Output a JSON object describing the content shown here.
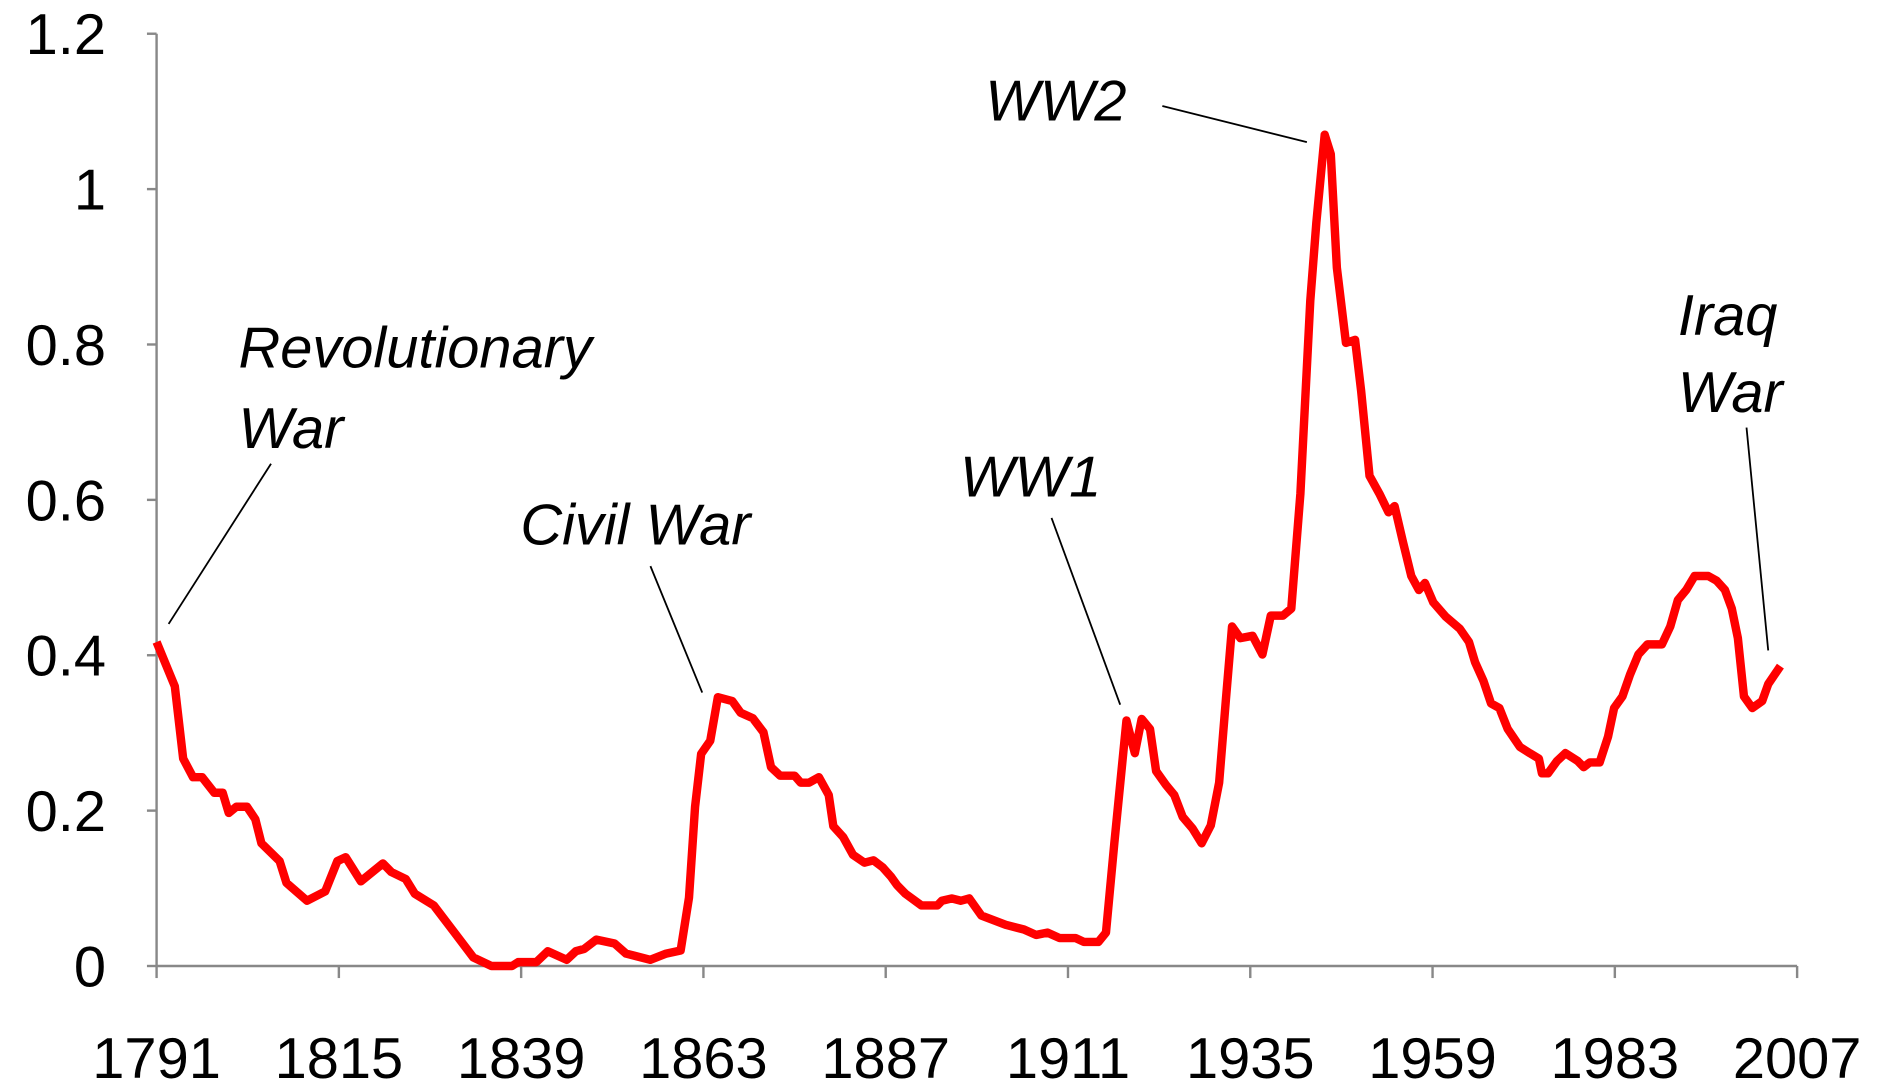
{
  "chart_data": {
    "type": "line",
    "xlim": [
      1791,
      2007
    ],
    "xticks": [
      1791,
      1815,
      1839,
      1863,
      1887,
      1911,
      1935,
      1959,
      1983,
      2007
    ],
    "ylim": [
      0,
      1.2
    ],
    "yticks": [
      0,
      0.2,
      0.4,
      0.6,
      0.8,
      1,
      1.2
    ],
    "annotations": [
      {
        "lines": [
          "Revolutionary",
          "War"
        ]
      },
      {
        "lines": [
          "Civil War"
        ]
      },
      {
        "lines": [
          "WW1"
        ]
      },
      {
        "lines": [
          "WW2"
        ]
      },
      {
        "lines": [
          "Iraq",
          "War"
        ]
      }
    ],
    "series": [
      {
        "color": "#ff0000",
        "x": [
          1791,
          1793.4,
          1794.5,
          1795.8,
          1797,
          1798.6,
          1799.7,
          1800.5,
          1801.5,
          1802.9,
          1804,
          1804.8,
          1807.2,
          1808.1,
          1810.8,
          1813.2,
          1814.8,
          1815.9,
          1817.9,
          1820.8,
          1821.9,
          1823.8,
          1825,
          1827.5,
          1830.3,
          1832.7,
          1835.1,
          1837.8,
          1838.6,
          1841,
          1842.5,
          1845,
          1846.2,
          1847.3,
          1848.9,
          1851.3,
          1852.8,
          1856,
          1858.1,
          1860,
          1861.1,
          1861.9,
          1862.7,
          1863.9,
          1864.9,
          1866.8,
          1867.9,
          1869.5,
          1870.9,
          1871.9,
          1873.1,
          1875,
          1875.8,
          1876.9,
          1878.2,
          1879.5,
          1880.1,
          1881.4,
          1882.7,
          1884.2,
          1885.4,
          1886.6,
          1887.7,
          1888.5,
          1889.6,
          1891.7,
          1893.8,
          1894.4,
          1895.7,
          1896.9,
          1898,
          1899.6,
          1902.8,
          1905.2,
          1906.8,
          1908.3,
          1909.9,
          1912,
          1913.1,
          1915,
          1916,
          1917.1,
          1918.7,
          1919.8,
          1920.7,
          1921.8,
          1922.6,
          1923.9,
          1925,
          1926.1,
          1927.4,
          1928.6,
          1929.8,
          1930.9,
          1931.8,
          1932.6,
          1933.7,
          1935.3,
          1936.6,
          1937.7,
          1939.3,
          1940.4,
          1941.6,
          1942.9,
          1943.7,
          1944.8,
          1945.6,
          1946.4,
          1947.6,
          1948.8,
          1949.6,
          1950.7,
          1952,
          1953.2,
          1954,
          1955.1,
          1956.2,
          1957.2,
          1958,
          1959.1,
          1960.7,
          1962.6,
          1963.8,
          1964.6,
          1965.7,
          1966.7,
          1967.8,
          1968.9,
          1970.5,
          1971.8,
          1973,
          1973.4,
          1974.2,
          1975.4,
          1976.5,
          1978.1,
          1978.9,
          1979.7,
          1981,
          1982.1,
          1982.9,
          1984,
          1985,
          1986.1,
          1987.3,
          1989.2,
          1990.3,
          1991.3,
          1992.4,
          1993.5,
          1995.3,
          1996.4,
          1997.5,
          1998.4,
          1999.2,
          2000,
          2001.1,
          2002.4,
          2003.2,
          2004.8
        ],
        "values": [
          0.417,
          0.36,
          0.267,
          0.243,
          0.243,
          0.223,
          0.223,
          0.197,
          0.205,
          0.205,
          0.189,
          0.158,
          0.135,
          0.107,
          0.084,
          0.096,
          0.135,
          0.14,
          0.109,
          0.132,
          0.121,
          0.112,
          0.093,
          0.078,
          0.042,
          0.011,
          0,
          0,
          0.005,
          0.005,
          0.019,
          0.008,
          0.019,
          0.022,
          0.034,
          0.029,
          0.016,
          0.008,
          0.016,
          0.02,
          0.088,
          0.205,
          0.273,
          0.29,
          0.346,
          0.341,
          0.326,
          0.319,
          0.301,
          0.256,
          0.245,
          0.245,
          0.236,
          0.236,
          0.243,
          0.22,
          0.18,
          0.166,
          0.143,
          0.133,
          0.136,
          0.127,
          0.115,
          0.104,
          0.093,
          0.078,
          0.078,
          0.084,
          0.087,
          0.084,
          0.087,
          0.065,
          0.053,
          0.047,
          0.04,
          0.043,
          0.036,
          0.036,
          0.031,
          0.031,
          0.043,
          0.158,
          0.316,
          0.274,
          0.318,
          0.305,
          0.251,
          0.233,
          0.22,
          0.192,
          0.177,
          0.158,
          0.181,
          0.236,
          0.344,
          0.437,
          0.422,
          0.425,
          0.401,
          0.451,
          0.451,
          0.46,
          0.608,
          0.856,
          0.957,
          1.07,
          1.045,
          0.899,
          0.802,
          0.806,
          0.74,
          0.631,
          0.608,
          0.584,
          0.592,
          0.546,
          0.502,
          0.484,
          0.493,
          0.468,
          0.45,
          0.434,
          0.417,
          0.391,
          0.367,
          0.338,
          0.332,
          0.305,
          0.282,
          0.274,
          0.267,
          0.248,
          0.248,
          0.264,
          0.274,
          0.264,
          0.256,
          0.262,
          0.262,
          0.295,
          0.332,
          0.347,
          0.375,
          0.401,
          0.414,
          0.414,
          0.437,
          0.471,
          0.484,
          0.502,
          0.502,
          0.496,
          0.484,
          0.46,
          0.422,
          0.347,
          0.332,
          0.341,
          0.363,
          0.386
        ]
      }
    ]
  }
}
